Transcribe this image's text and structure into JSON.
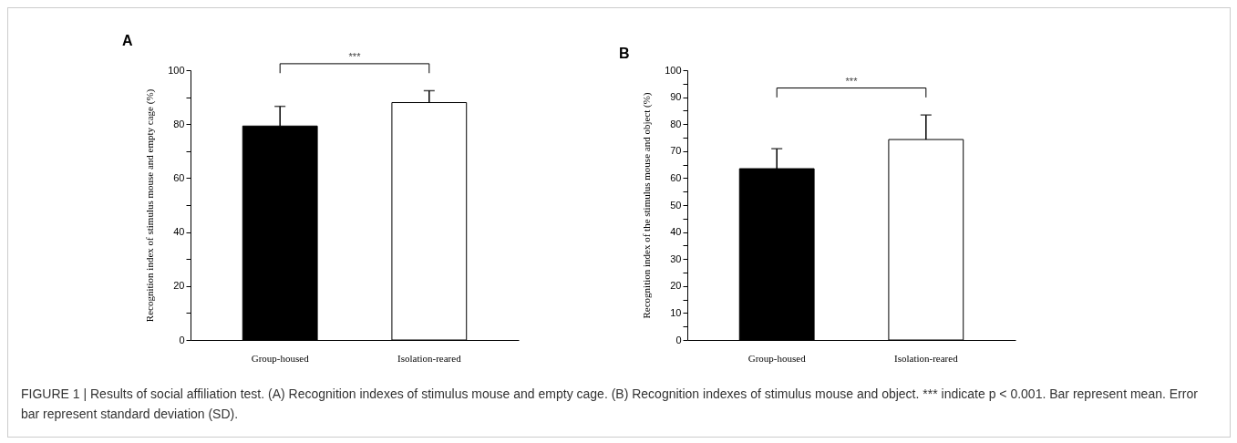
{
  "chart_data": [
    {
      "type": "bar",
      "title": "A",
      "categories": [
        "Group-housed",
        "Isolation-reared"
      ],
      "values": [
        79.3,
        88.0
      ],
      "colors": [
        "#000000",
        "#ffffff"
      ],
      "errors": [
        [
          79.3,
          86.6
        ],
        [
          88.0,
          92.4
        ]
      ],
      "ylabel": "Recognition index of stimulus mouse and empty cage (%)",
      "ylim": [
        0,
        100
      ],
      "yticks": [
        0,
        {
          "value": 10,
          "label": null
        },
        20,
        {
          "value": 30,
          "label": null
        },
        40,
        {
          "value": 50,
          "label": null
        },
        60,
        {
          "value": 70,
          "label": null
        },
        80,
        {
          "value": 90,
          "label": null
        },
        100
      ],
      "grid": false,
      "legend": false,
      "annotations": [
        "***",
        "FIGURE 1 | Results of social affiliation test. (A) Recognition indexes of stimulus mouse and empty cage. (B) Recognition indexes of stimulus mouse and object. *** indicate p < 0.001. Bar represent mean. Error bar represent standard deviation (SD)."
      ]
    },
    {
      "type": "bar",
      "title": "B",
      "categories": [
        "Group-housed",
        "Isolation-reared"
      ],
      "values": [
        63.5,
        74.3
      ],
      "colors": [
        "#000000",
        "#ffffff"
      ],
      "errors": [
        [
          63.5,
          70.9
        ],
        [
          74.3,
          83.4
        ]
      ],
      "ylabel": "Recognition index of the stimulus mouse and object (%)",
      "ylim": [
        0,
        100
      ],
      "yticks": [
        0,
        {
          "value": 5,
          "label": null
        },
        10,
        {
          "value": 15,
          "label": null
        },
        20,
        {
          "value": 25,
          "label": null
        },
        30,
        {
          "value": 35,
          "label": null
        },
        40,
        {
          "value": 45,
          "label": null
        },
        50,
        {
          "value": 55,
          "label": null
        },
        60,
        {
          "value": 65,
          "label": null
        },
        70,
        {
          "value": 75,
          "label": null
        },
        80,
        {
          "value": 85,
          "label": null
        },
        90,
        {
          "value": 95,
          "label": null
        },
        100
      ],
      "grid": false,
      "legend": false,
      "annotations": [
        "***"
      ]
    }
  ]
}
